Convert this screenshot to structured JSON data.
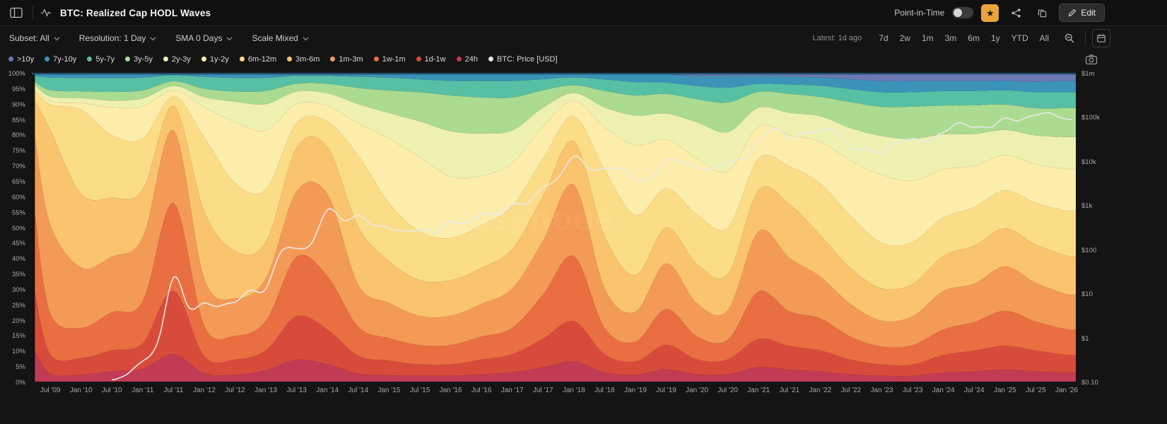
{
  "header": {
    "title": "BTC: Realized Cap HODL Waves",
    "point_in_time_label": "Point-in-Time",
    "edit_label": "Edit",
    "favorite_color": "#eaa33c"
  },
  "toolbar": {
    "dropdowns": [
      {
        "id": "subset",
        "label": "Subset: All"
      },
      {
        "id": "resolution",
        "label": "Resolution: 1 Day"
      },
      {
        "id": "sma",
        "label": "SMA 0 Days"
      },
      {
        "id": "scale",
        "label": "Scale Mixed"
      }
    ],
    "latest_label": "Latest: 1d ago",
    "ranges": [
      "7d",
      "2w",
      "1m",
      "3m",
      "6m",
      "1y",
      "YTD",
      "All"
    ]
  },
  "watermark": "glassnode",
  "chart_data": {
    "type": "area",
    "stacked": true,
    "stack_unit": "percent",
    "title": "BTC: Realized Cap HODL Waves",
    "x_range": [
      2009.2,
      2026.15
    ],
    "x_years": [
      2009.25,
      2009.5,
      2010,
      2010.5,
      2011,
      2011.5,
      2012,
      2012.5,
      2013,
      2013.5,
      2014,
      2014.5,
      2015,
      2015.5,
      2016,
      2016.5,
      2017,
      2017.5,
      2018,
      2018.5,
      2019,
      2019.5,
      2020,
      2020.5,
      2021,
      2021.5,
      2022,
      2022.5,
      2023,
      2023.5,
      2024,
      2024.5,
      2025,
      2025.5,
      2026,
      2026.15
    ],
    "series": [
      {
        "name": "24h",
        "color": "#c23b54",
        "values": [
          10,
          2.5,
          2,
          3,
          4,
          9,
          2.5,
          2,
          3.5,
          7,
          5.5,
          2.5,
          2,
          1.8,
          1.8,
          2.2,
          2.8,
          4.5,
          6.5,
          2.8,
          2,
          3.8,
          2.2,
          2.2,
          4.5,
          3.8,
          3.2,
          2.2,
          1.8,
          1.8,
          2.8,
          3.2,
          3.8,
          3.2,
          2.8,
          2.8
        ]
      },
      {
        "name": "1d-1w",
        "color": "#d84b3a",
        "values": [
          19,
          6,
          5,
          6,
          8,
          21,
          5,
          4.5,
          6,
          14,
          11,
          5.5,
          4.5,
          3.5,
          3.5,
          4.5,
          5.5,
          9,
          13,
          5.5,
          4,
          7.5,
          4.5,
          4.5,
          9,
          7.5,
          6.5,
          4.5,
          3.5,
          3.5,
          5.5,
          6.5,
          7.5,
          6.5,
          5.5,
          5.5
        ]
      },
      {
        "name": "1w-1m",
        "color": "#e96e41",
        "values": [
          26,
          13,
          9,
          11,
          13,
          29,
          9,
          7,
          9,
          19,
          17,
          9,
          7,
          6,
          6,
          7,
          8,
          14,
          21,
          8,
          6,
          11,
          7,
          6,
          15,
          11,
          10,
          7,
          5.5,
          6,
          8,
          9,
          11,
          9,
          8,
          8
        ]
      },
      {
        "name": "1m-3m",
        "color": "#f49a57",
        "values": [
          25,
          28,
          18,
          16,
          20,
          24,
          14,
          11,
          13,
          21,
          26,
          13,
          11,
          9,
          9,
          10,
          12,
          17,
          23,
          12,
          9,
          14,
          10,
          9,
          19,
          17,
          13,
          10,
          8,
          9,
          12,
          12,
          14,
          12,
          11,
          11
        ]
      },
      {
        "name": "3m-6m",
        "color": "#fac46e",
        "values": [
          12,
          30,
          22,
          17,
          15,
          8,
          20,
          14,
          11,
          14,
          15,
          18,
          13,
          11,
          11,
          11,
          12,
          14,
          14,
          16,
          11,
          11,
          12,
          11,
          13,
          17,
          13,
          11,
          10,
          10,
          11,
          12,
          12,
          12,
          12,
          12
        ]
      },
      {
        "name": "6m-12m",
        "color": "#fcdd87",
        "values": [
          3,
          8,
          25,
          18,
          16,
          3,
          22,
          20,
          16,
          8,
          8,
          22,
          18,
          15,
          13,
          13,
          13,
          12,
          8,
          20,
          18,
          12,
          15,
          14,
          10,
          12,
          16,
          16,
          14,
          13,
          12,
          12,
          12,
          13,
          14,
          14
        ]
      },
      {
        "name": "1y-2y",
        "color": "#fcedaa",
        "values": [
          1,
          1,
          2,
          8,
          10,
          2,
          9,
          18,
          18,
          6,
          5,
          10,
          20,
          23,
          19,
          15,
          13,
          10,
          5,
          13,
          21,
          15,
          17,
          17,
          10,
          10,
          13,
          17,
          21,
          19,
          15,
          13,
          11,
          12,
          13,
          13
        ]
      },
      {
        "name": "2y-3y",
        "color": "#eef0b0",
        "values": [
          1,
          1.5,
          1.5,
          2,
          2.5,
          1.5,
          3,
          6,
          8,
          4,
          4,
          6,
          8,
          11,
          14,
          13,
          10,
          6,
          2.5,
          6,
          9,
          8,
          11,
          12,
          6,
          7,
          8,
          10,
          12,
          13,
          11,
          10,
          8,
          9,
          10,
          10
        ]
      },
      {
        "name": "3y-5y",
        "color": "#abdb90",
        "values": [
          1,
          2,
          2,
          2.5,
          2.5,
          1.5,
          2.5,
          3,
          4,
          2.5,
          3,
          5,
          7,
          9,
          11,
          11,
          10,
          5.5,
          2.5,
          5,
          6,
          6,
          7,
          9,
          5,
          6,
          6,
          8,
          9,
          10,
          9,
          9,
          8,
          8.5,
          9,
          9
        ]
      },
      {
        "name": "5y-7y",
        "color": "#57c0a4",
        "values": [
          2,
          4,
          4,
          4,
          4,
          2,
          3.5,
          4,
          4,
          2.5,
          2.5,
          3.5,
          4,
          4,
          4.5,
          5,
          5,
          3.5,
          2.5,
          3.5,
          4,
          3.5,
          4,
          4.5,
          2.5,
          3,
          3.5,
          4,
          4.5,
          4.5,
          4.5,
          4.5,
          4.5,
          5,
          5,
          5
        ]
      },
      {
        "name": "7y-10y",
        "color": "#3b93b8",
        "values": [
          1,
          1.5,
          1.5,
          1.5,
          1.5,
          0.8,
          1.2,
          1.5,
          1.5,
          1,
          1,
          1.2,
          1.5,
          2,
          2.5,
          2.5,
          2.5,
          2,
          1.5,
          2,
          2.5,
          2.5,
          3,
          3.5,
          2.5,
          2.5,
          2.5,
          3,
          3.5,
          3.5,
          3.2,
          3.2,
          3,
          3.2,
          3.5,
          3.5
        ]
      },
      {
        "name": ">10y",
        "color": "#6d77b4",
        "values": [
          0,
          0,
          0,
          0,
          0,
          0,
          0,
          0,
          0,
          0,
          0,
          0,
          0,
          0,
          0,
          0,
          0,
          0,
          0,
          0,
          0.3,
          0.5,
          1,
          1,
          1,
          1.2,
          1.5,
          2,
          2.5,
          2.5,
          2.5,
          2.5,
          2.5,
          2.8,
          2.5,
          2.5
        ]
      }
    ],
    "price": {
      "name": "BTC: Price [USD]",
      "color": "#e8e8ea",
      "x": [
        2010.5,
        2010.75,
        2011,
        2011.25,
        2011.5,
        2011.75,
        2012,
        2012.25,
        2012.5,
        2012.75,
        2013,
        2013.25,
        2013.5,
        2013.75,
        2014,
        2014.25,
        2014.5,
        2014.75,
        2015,
        2015.25,
        2015.5,
        2015.75,
        2016,
        2016.25,
        2016.5,
        2016.75,
        2017,
        2017.25,
        2017.5,
        2017.75,
        2018,
        2018.25,
        2018.5,
        2018.75,
        2019,
        2019.25,
        2019.5,
        2019.75,
        2020,
        2020.25,
        2020.5,
        2020.75,
        2021,
        2021.25,
        2021.5,
        2021.75,
        2022,
        2022.25,
        2022.5,
        2022.75,
        2023,
        2023.25,
        2023.5,
        2023.75,
        2024,
        2024.25,
        2024.5,
        2024.75,
        2025,
        2025.25,
        2025.5,
        2025.75,
        2026,
        2026.1
      ],
      "values": [
        0.09,
        0.15,
        0.3,
        0.85,
        25,
        4.8,
        5.5,
        4.9,
        6.5,
        12,
        13.5,
        95,
        100,
        130,
        780,
        460,
        600,
        380,
        310,
        245,
        260,
        240,
        430,
        420,
        670,
        610,
        970,
        1080,
        2500,
        4300,
        14000,
        7000,
        6400,
        6600,
        3700,
        4100,
        11000,
        10000,
        7200,
        6400,
        9100,
        10800,
        29000,
        58000,
        35000,
        43000,
        46000,
        45000,
        19000,
        19400,
        16500,
        28000,
        30500,
        27000,
        42500,
        70000,
        62000,
        63000,
        94000,
        82000,
        107000,
        112000,
        88000,
        86000
      ]
    },
    "left_axis": {
      "ticks": [
        "0%",
        "5%",
        "10%",
        "15%",
        "20%",
        "25%",
        "30%",
        "35%",
        "40%",
        "45%",
        "50%",
        "55%",
        "60%",
        "65%",
        "70%",
        "75%",
        "80%",
        "85%",
        "90%",
        "95%",
        "100%"
      ],
      "min": 0,
      "max": 100
    },
    "right_axis": {
      "scale": "log",
      "min": 0.1,
      "max": 1000000,
      "ticks": [
        {
          "label": "$0.10",
          "v": 0.1
        },
        {
          "label": "$1",
          "v": 1
        },
        {
          "label": "$10",
          "v": 10
        },
        {
          "label": "$100",
          "v": 100
        },
        {
          "label": "$1k",
          "v": 1000
        },
        {
          "label": "$10k",
          "v": 10000
        },
        {
          "label": "$100k",
          "v": 100000
        },
        {
          "label": "$1m",
          "v": 1000000
        }
      ]
    },
    "x_tick_start": 2009.5,
    "x_tick_step": 0.5,
    "x_tick_labels": [
      "Jul '09",
      "Jan '10",
      "Jul '10",
      "Jan '11",
      "Jul '11",
      "Jan '12",
      "Jul '12",
      "Jan '13",
      "Jul '13",
      "Jan '14",
      "Jul '14",
      "Jan '15",
      "Jul '15",
      "Jan '16",
      "Jul '16",
      "Jan '17",
      "Jul '17",
      "Jan '18",
      "Jul '18",
      "Jan '19",
      "Jul '19",
      "Jan '20",
      "Jul '20",
      "Jan '21",
      "Jul '21",
      "Jan '22",
      "Jul '22",
      "Jan '23",
      "Jul '23",
      "Jan '24",
      "Jul '24",
      "Jan '25",
      "Jul '25",
      "Jan '26"
    ]
  }
}
